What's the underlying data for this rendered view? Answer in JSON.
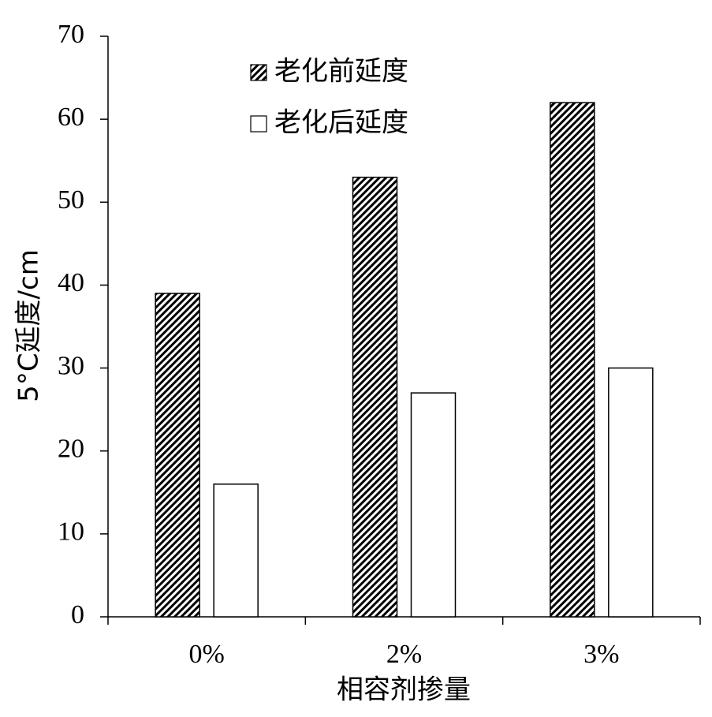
{
  "chart_data": {
    "type": "bar",
    "x_label": "相容剂掺量",
    "y_label": "5°C延度/cm",
    "categories": [
      "0%",
      "2%",
      "3%"
    ],
    "series": [
      {
        "name": "老化前延度",
        "color": "#000000",
        "hatch": true,
        "values": [
          39,
          53,
          62
        ]
      },
      {
        "name": "老化后延度",
        "color": "#ffffff",
        "hatch": false,
        "values": [
          16,
          27,
          30
        ]
      }
    ],
    "ylim": [
      0,
      70
    ],
    "yticks": [
      0,
      10,
      20,
      30,
      40,
      50,
      60,
      70
    ],
    "grid": false
  }
}
